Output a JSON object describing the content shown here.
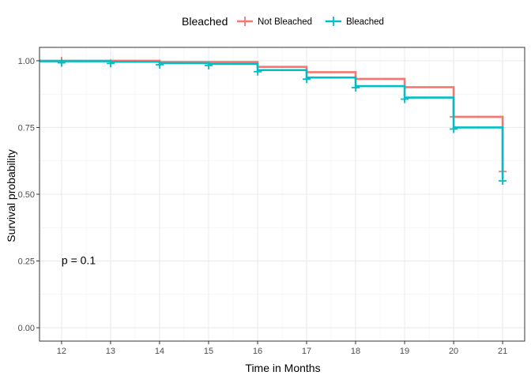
{
  "chart_data": {
    "type": "line",
    "subtype": "kaplan-meier-step",
    "xlabel": "Time in Months",
    "ylabel": "Survival probability",
    "xlim": [
      11.55,
      21.45
    ],
    "ylim": [
      -0.05,
      1.05
    ],
    "x_ticks": [
      12,
      13,
      14,
      15,
      16,
      17,
      18,
      19,
      20,
      21
    ],
    "y_ticks": [
      0.0,
      0.25,
      0.5,
      0.75,
      1.0
    ],
    "y_tick_labels": [
      "0.00",
      "0.25",
      "0.50",
      "0.75",
      "1.00"
    ],
    "grid": true,
    "legend": {
      "title": "Bleached",
      "position": "top",
      "entries": [
        "Not Bleached",
        "Bleached"
      ]
    },
    "annotation": {
      "text": "p = 0.1",
      "x": 12.0,
      "y": 0.25
    },
    "series": [
      {
        "name": "Not Bleached",
        "color": "#F8766D",
        "steps": [
          {
            "x": 11.55,
            "y": 1.0
          },
          {
            "x": 14.0,
            "y": 0.995
          },
          {
            "x": 16.0,
            "y": 0.977
          },
          {
            "x": 17.0,
            "y": 0.957
          },
          {
            "x": 18.0,
            "y": 0.932
          },
          {
            "x": 19.0,
            "y": 0.901
          },
          {
            "x": 20.0,
            "y": 0.79
          },
          {
            "x": 21.0,
            "y": 0.585
          }
        ],
        "censor_points": [
          {
            "x": 12.0,
            "y": 1.0
          },
          {
            "x": 20.0,
            "y": 0.79
          },
          {
            "x": 21.0,
            "y": 0.585
          }
        ]
      },
      {
        "name": "Bleached",
        "color": "#00BFC4",
        "steps": [
          {
            "x": 11.55,
            "y": 0.998
          },
          {
            "x": 13.0,
            "y": 0.996
          },
          {
            "x": 14.0,
            "y": 0.991
          },
          {
            "x": 15.0,
            "y": 0.988
          },
          {
            "x": 16.0,
            "y": 0.965
          },
          {
            "x": 17.0,
            "y": 0.937
          },
          {
            "x": 18.0,
            "y": 0.905
          },
          {
            "x": 19.0,
            "y": 0.862
          },
          {
            "x": 20.0,
            "y": 0.75
          },
          {
            "x": 21.0,
            "y": 0.556
          }
        ],
        "censor_points": [
          {
            "x": 12.0,
            "y": 0.998
          },
          {
            "x": 13.0,
            "y": 0.996
          },
          {
            "x": 14.0,
            "y": 0.991
          },
          {
            "x": 15.0,
            "y": 0.988
          },
          {
            "x": 16.0,
            "y": 0.965
          },
          {
            "x": 17.0,
            "y": 0.937
          },
          {
            "x": 18.0,
            "y": 0.905
          },
          {
            "x": 19.0,
            "y": 0.862
          },
          {
            "x": 20.0,
            "y": 0.75
          },
          {
            "x": 21.0,
            "y": 0.556
          }
        ]
      }
    ]
  }
}
